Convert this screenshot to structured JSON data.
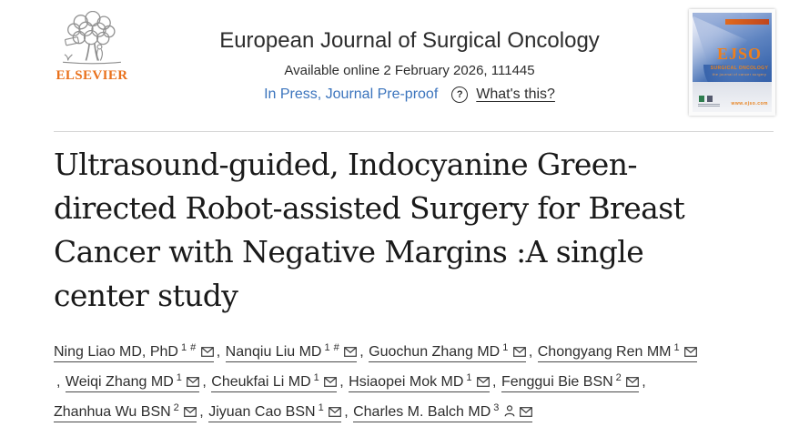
{
  "header": {
    "elsevier_label": "ELSEVIER",
    "journal_title": "European Journal of Surgical Oncology",
    "available_online": "Available online 2 February 2026, 111445",
    "in_press_label": "In Press, Journal Pre-proof",
    "question_icon": "?",
    "whats_this_label": "What's this?",
    "cover": {
      "title": "EJSO",
      "subtitle": "SURGICAL ONCOLOGY",
      "tagline": "the journal of cancer surgery",
      "website": "www.ejso.com"
    }
  },
  "article": {
    "title_lines": [
      "Ultrasound-guided, Indocyanine Green-",
      "directed Robot-assisted Surgery for Breast",
      "Cancer with Negative Margins :A single",
      "center study"
    ],
    "author_separator": ", ",
    "author_lines": [
      {
        "leading": "",
        "trailing": "",
        "authors": [
          {
            "name": "Ning Liao MD, PhD",
            "sup": "1 #",
            "icons": [
              "email"
            ]
          },
          {
            "name": "Nanqiu Liu MD",
            "sup": "1 #",
            "icons": [
              "email"
            ]
          },
          {
            "name": "Guochun Zhang MD",
            "sup": "1",
            "icons": [
              "email"
            ]
          },
          {
            "name": "Chongyang Ren MM",
            "sup": "1",
            "icons": [
              "email"
            ]
          }
        ]
      },
      {
        "leading": ", ",
        "trailing": ",",
        "authors": [
          {
            "name": "Weiqi Zhang MD",
            "sup": "1",
            "icons": [
              "email"
            ]
          },
          {
            "name": "Cheukfai Li MD",
            "sup": "1",
            "icons": [
              "email"
            ]
          },
          {
            "name": "Hsiaopei Mok MD",
            "sup": "1",
            "icons": [
              "email"
            ]
          },
          {
            "name": "Fenggui Bie BSN",
            "sup": "2",
            "icons": [
              "email"
            ]
          }
        ]
      },
      {
        "leading": "",
        "trailing": "",
        "authors": [
          {
            "name": "Zhanhua Wu BSN",
            "sup": "2",
            "icons": [
              "email"
            ]
          },
          {
            "name": "Jiyuan Cao BSN",
            "sup": "1",
            "icons": [
              "email"
            ]
          },
          {
            "name": "Charles M. Balch MD",
            "sup": "3",
            "icons": [
              "person",
              "email"
            ]
          }
        ]
      }
    ]
  },
  "colors": {
    "accent_orange": "#e9711c",
    "link_blue": "#3b74bd",
    "text_dark": "#2a2a2a",
    "divider_gray": "#d6d6d6",
    "cover_orange": "#ef7f1a",
    "cover_blue": "#3a66ad"
  }
}
